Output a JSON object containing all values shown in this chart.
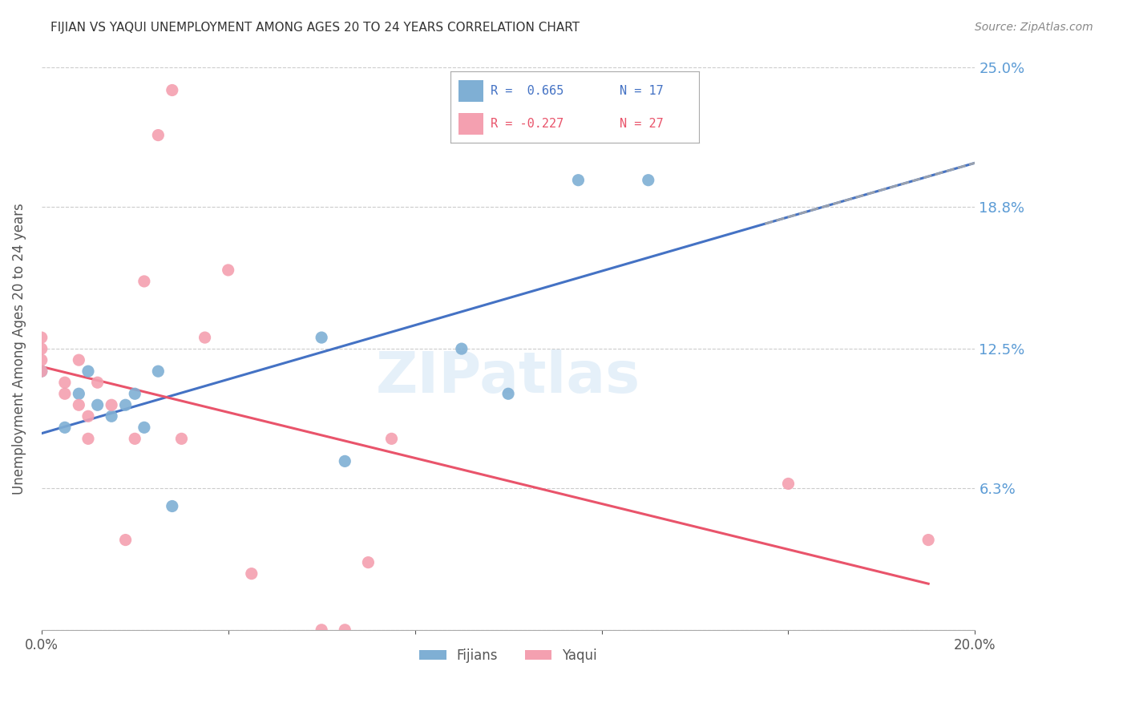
{
  "title": "FIJIAN VS YAQUI UNEMPLOYMENT AMONG AGES 20 TO 24 YEARS CORRELATION CHART",
  "source": "Source: ZipAtlas.com",
  "ylabel": "Unemployment Among Ages 20 to 24 years",
  "xlim": [
    0.0,
    0.2
  ],
  "ylim": [
    0.0,
    0.25
  ],
  "xticks": [
    0.0,
    0.04,
    0.08,
    0.12,
    0.16,
    0.2
  ],
  "xticklabels": [
    "0.0%",
    "",
    "",
    "",
    "",
    "20.0%"
  ],
  "ytick_positions": [
    0.0,
    0.063,
    0.125,
    0.188,
    0.25
  ],
  "ytick_labels": [
    "",
    "6.3%",
    "12.5%",
    "18.8%",
    "25.0%"
  ],
  "fijian_color": "#7fafd4",
  "yaqui_color": "#f4a0b0",
  "line_fijian_color": "#4472C4",
  "line_yaqui_color": "#E9546B",
  "legend_r_fijian": "R =  0.665",
  "legend_n_fijian": "N = 17",
  "legend_r_yaqui": "R = -0.227",
  "legend_n_yaqui": "N = 27",
  "watermark": "ZIPatlas",
  "fijian_x": [
    0.0,
    0.005,
    0.008,
    0.01,
    0.012,
    0.015,
    0.018,
    0.02,
    0.022,
    0.025,
    0.028,
    0.06,
    0.065,
    0.09,
    0.1,
    0.115,
    0.13
  ],
  "fijian_y": [
    0.115,
    0.09,
    0.105,
    0.115,
    0.1,
    0.095,
    0.1,
    0.105,
    0.09,
    0.115,
    0.055,
    0.13,
    0.075,
    0.125,
    0.105,
    0.2,
    0.2
  ],
  "yaqui_x": [
    0.0,
    0.0,
    0.0,
    0.0,
    0.005,
    0.005,
    0.008,
    0.008,
    0.01,
    0.01,
    0.012,
    0.015,
    0.018,
    0.02,
    0.022,
    0.025,
    0.028,
    0.03,
    0.035,
    0.04,
    0.045,
    0.06,
    0.065,
    0.07,
    0.075,
    0.16,
    0.19
  ],
  "yaqui_y": [
    0.115,
    0.12,
    0.125,
    0.13,
    0.105,
    0.11,
    0.1,
    0.12,
    0.085,
    0.095,
    0.11,
    0.1,
    0.04,
    0.085,
    0.155,
    0.22,
    0.24,
    0.085,
    0.13,
    0.16,
    0.025,
    0.0,
    0.0,
    0.03,
    0.085,
    0.065,
    0.04
  ],
  "background_color": "#ffffff",
  "grid_color": "#cccccc"
}
